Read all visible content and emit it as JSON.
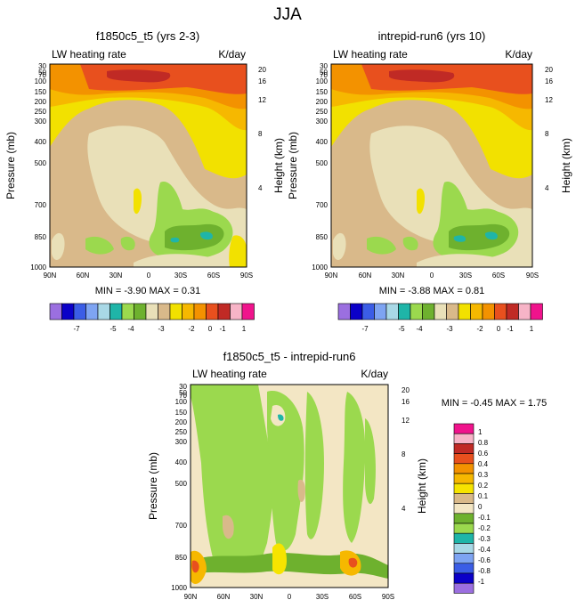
{
  "figure_title": "JJA",
  "left_panel": {
    "title": "f1850c5_t5 (yrs 2-3)",
    "subtitle_left": "LW heating rate",
    "units": "K/day",
    "stats": "MIN =  -3.90   MAX =   0.31"
  },
  "right_panel": {
    "title": "intrepid-run6 (yrs 10)",
    "subtitle_left": "LW heating rate",
    "units": "K/day",
    "stats": "MIN =  -3.88   MAX =   0.81"
  },
  "diff_panel": {
    "title": "f1850c5_t5 - intrepid-run6",
    "subtitle_left": "LW heating rate",
    "units": "K/day",
    "stats": "MIN =  -0.45   MAX =   1.75"
  },
  "axes": {
    "ylabel_left": "Pressure (mb)",
    "ylabel_right": "Height (km)",
    "pressure_ticks": [
      "30",
      "50",
      "70",
      "100",
      "150",
      "200",
      "250",
      "300",
      "400",
      "500",
      "700",
      "850",
      "1000"
    ],
    "height_ticks": [
      "20",
      "16",
      "12",
      "8",
      "4"
    ],
    "lat_ticks": [
      "90N",
      "60N",
      "30N",
      "0",
      "30S",
      "60S",
      "90S"
    ]
  },
  "colors_abs": [
    "#9b6fe0",
    "#0b00c8",
    "#3b5de6",
    "#7ea4f2",
    "#a9d8e6",
    "#1fb5a8",
    "#9bd94e",
    "#6eb12e",
    "#e9e0b8",
    "#d9b98a",
    "#f2e100",
    "#f6b800",
    "#f39200",
    "#e8501e",
    "#c02a25",
    "#f7b4c7",
    "#f0138c"
  ],
  "colors_diff": [
    "#9b6fe0",
    "#0b00c8",
    "#3b5de6",
    "#7ea4f2",
    "#a9d8e6",
    "#1fb5a8",
    "#9bd94e",
    "#6eb12e",
    "#f3e6c4",
    "#d9b98a",
    "#f6e400",
    "#f6b800",
    "#f39200",
    "#e8501e",
    "#c02a25",
    "#f7b4c7",
    "#f0138c"
  ],
  "chart_data": [
    {
      "type": "heatmap",
      "title": "f1850c5_t5 (yrs 2-3)",
      "xlabel": "",
      "ylabel": "Pressure (mb)",
      "x": [
        "90N",
        "60N",
        "30N",
        "0",
        "30S",
        "60S",
        "90S"
      ],
      "y": [
        30,
        50,
        70,
        100,
        150,
        200,
        250,
        300,
        400,
        500,
        700,
        850,
        1000
      ],
      "colorbar_labels": [
        "-7",
        "-5",
        "-4",
        "-3",
        "-2",
        "-1",
        "0",
        "1"
      ],
      "min": -3.9,
      "max": 0.31
    },
    {
      "type": "heatmap",
      "title": "intrepid-run6 (yrs 10)",
      "xlabel": "",
      "ylabel": "Pressure (mb)",
      "x": [
        "90N",
        "60N",
        "30N",
        "0",
        "30S",
        "60S",
        "90S"
      ],
      "y": [
        30,
        50,
        70,
        100,
        150,
        200,
        250,
        300,
        400,
        500,
        700,
        850,
        1000
      ],
      "colorbar_labels": [
        "-7",
        "-5",
        "-4",
        "-3",
        "-2",
        "-1",
        "0",
        "1"
      ],
      "min": -3.88,
      "max": 0.81
    },
    {
      "type": "heatmap",
      "title": "f1850c5_t5 - intrepid-run6",
      "xlabel": "",
      "ylabel": "Pressure (mb)",
      "x": [
        "90N",
        "60N",
        "30N",
        "0",
        "30S",
        "60S",
        "90S"
      ],
      "y": [
        30,
        50,
        70,
        100,
        150,
        200,
        250,
        300,
        400,
        500,
        700,
        850,
        1000
      ],
      "colorbar_labels": [
        "1",
        "0.8",
        "0.6",
        "0.4",
        "0.3",
        "0.2",
        "0.1",
        "0",
        "-0.1",
        "-0.2",
        "-0.3",
        "-0.4",
        "-0.6",
        "-0.8",
        "-1"
      ],
      "min": -0.45,
      "max": 1.75
    }
  ]
}
